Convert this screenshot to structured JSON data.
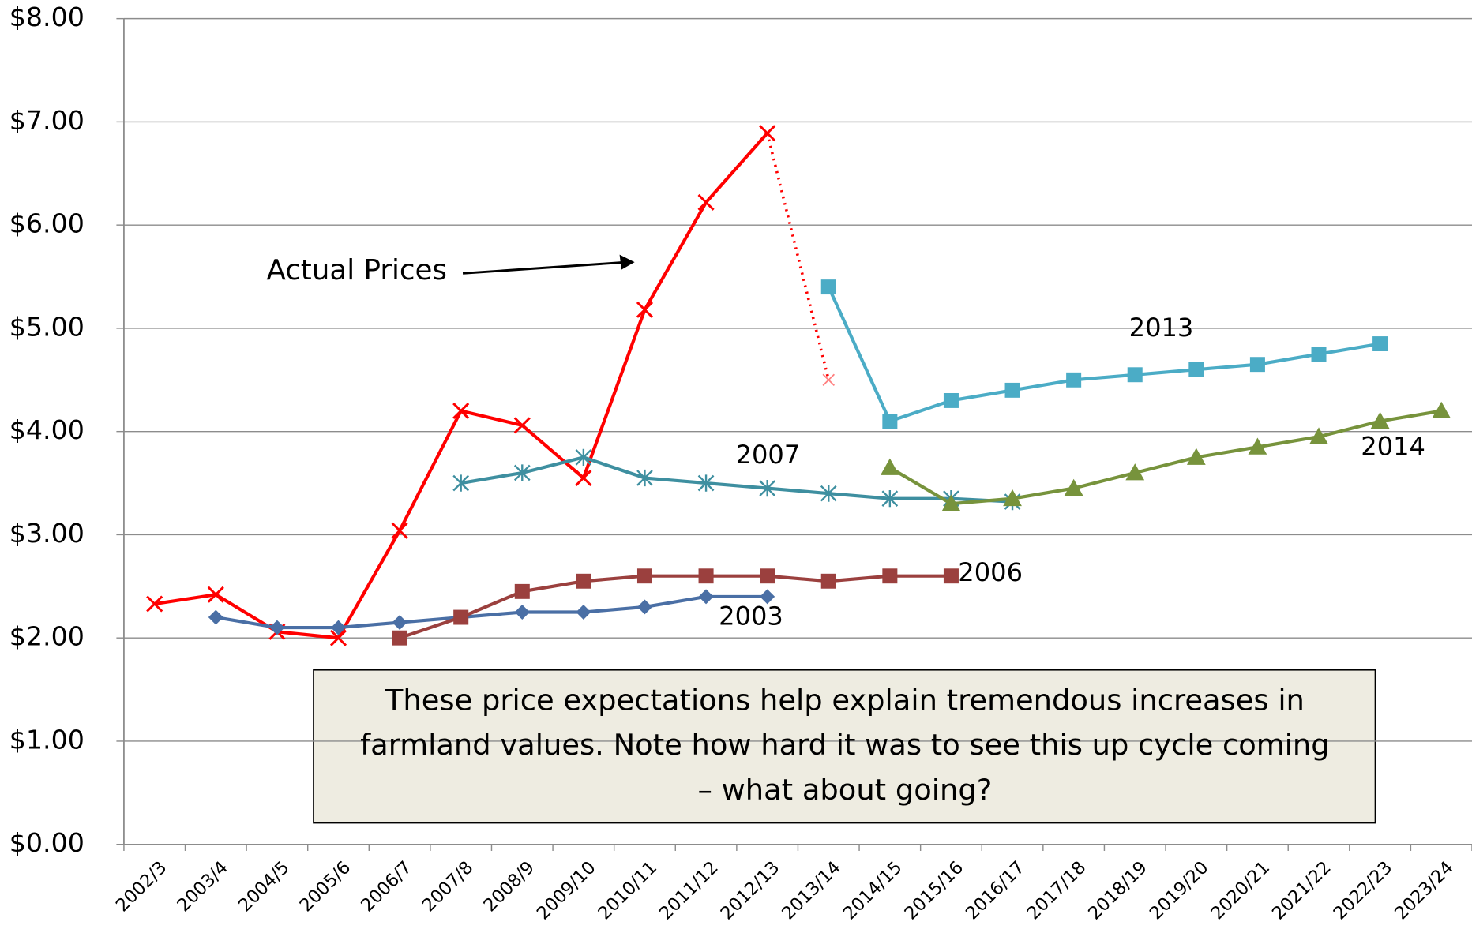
{
  "chart_data": {
    "type": "line",
    "categories": [
      "2002/3",
      "2003/4",
      "2004/5",
      "2005/6",
      "2006/7",
      "2007/8",
      "2008/9",
      "2009/10",
      "2010/11",
      "2011/12",
      "2012/13",
      "2013/14",
      "2014/15",
      "2015/16",
      "2016/17",
      "2017/18",
      "2018/19",
      "2019/20",
      "2020/21",
      "2021/22",
      "2022/23",
      "2023/24"
    ],
    "series": [
      {
        "name": "Actual Prices",
        "color": "#ff0000",
        "marker": "x",
        "dotted_last_segment": true,
        "values": [
          2.33,
          2.42,
          2.06,
          2.0,
          3.04,
          4.2,
          4.06,
          3.55,
          5.18,
          6.22,
          6.89,
          4.5,
          null,
          null,
          null,
          null,
          null,
          null,
          null,
          null,
          null,
          null
        ]
      },
      {
        "name": "2003",
        "color": "#4a6fa5",
        "marker": "diamond",
        "values": [
          null,
          2.2,
          2.1,
          2.1,
          2.15,
          2.2,
          2.25,
          2.25,
          2.3,
          2.4,
          2.4,
          null,
          null,
          null,
          null,
          null,
          null,
          null,
          null,
          null,
          null,
          null
        ]
      },
      {
        "name": "2006",
        "color": "#9b403e",
        "marker": "square",
        "values": [
          null,
          null,
          null,
          null,
          2.0,
          2.2,
          2.45,
          2.55,
          2.6,
          2.6,
          2.6,
          2.55,
          2.6,
          2.6,
          null,
          null,
          null,
          null,
          null,
          null,
          null,
          null
        ]
      },
      {
        "name": "2007",
        "color": "#3e8fa0",
        "marker": "asterisk",
        "values": [
          null,
          null,
          null,
          null,
          null,
          3.5,
          3.6,
          3.75,
          3.55,
          3.5,
          3.45,
          3.4,
          3.35,
          3.35,
          3.32,
          null,
          null,
          null,
          null,
          null,
          null,
          null
        ]
      },
      {
        "name": "2013",
        "color": "#4bacc6",
        "marker": "square",
        "values": [
          null,
          null,
          null,
          null,
          null,
          null,
          null,
          null,
          null,
          null,
          null,
          5.4,
          4.1,
          4.3,
          4.4,
          4.5,
          4.55,
          4.6,
          4.65,
          4.75,
          4.85,
          null
        ]
      },
      {
        "name": "2014",
        "color": "#77933c",
        "marker": "triangle",
        "values": [
          null,
          null,
          null,
          null,
          null,
          null,
          null,
          null,
          null,
          null,
          null,
          null,
          3.65,
          3.3,
          3.35,
          3.45,
          3.6,
          3.75,
          3.85,
          3.95,
          4.1,
          4.2
        ]
      }
    ],
    "ylim": [
      0,
      8
    ],
    "yticks": [
      {
        "value": 0,
        "label": "$0.00"
      },
      {
        "value": 1,
        "label": "$1.00"
      },
      {
        "value": 2,
        "label": "$2.00"
      },
      {
        "value": 3,
        "label": "$3.00"
      },
      {
        "value": 4,
        "label": "$4.00"
      },
      {
        "value": 5,
        "label": "$5.00"
      },
      {
        "value": 6,
        "label": "$6.00"
      },
      {
        "value": 7,
        "label": "$7.00"
      },
      {
        "value": 8,
        "label": "$8.00"
      }
    ],
    "grid": true,
    "text_box": [
      "These price expectations help explain tremendous increases in",
      "farmland values. Note how hard it was to see this up cycle coming",
      "– what about going?"
    ]
  }
}
